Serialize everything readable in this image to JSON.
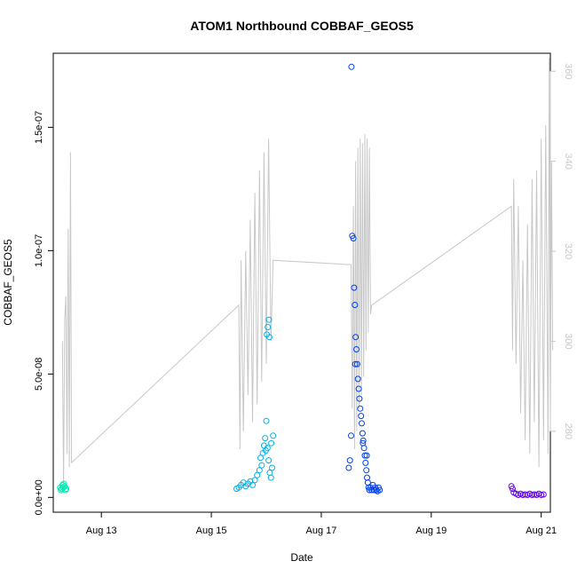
{
  "chart_data": {
    "type": "scatter",
    "title": "ATOM1 Northbound COBBAF_GEOS5",
    "xlabel": "Date",
    "ylabel": "COBBAF_GEOS5",
    "x_ticks": [
      "Aug 13",
      "Aug 15",
      "Aug 17",
      "Aug 19",
      "Aug 21"
    ],
    "y_ticks": [
      "0.0e+00",
      "5.0e-08",
      "1.0e-07",
      "1.5e-07"
    ],
    "y2_ticks": [
      "280",
      "300",
      "320",
      "340",
      "360"
    ],
    "xlim": [
      "2016-08-12T03:00",
      "2016-08-21T04:00"
    ],
    "ylim": [
      -6e-09,
      1.8e-07
    ],
    "y2lim": [
      262,
      364
    ],
    "grid": false,
    "legend": "none",
    "colors": {
      "line": "#c8c8c8",
      "right_axis": "#c8c8c8"
    },
    "scatter_series": [
      {
        "color": "#00e8b0",
        "points": [
          [
            "2016-08-12T06:00",
            4e-09
          ],
          [
            "2016-08-12T06:20",
            3e-09
          ],
          [
            "2016-08-12T06:40",
            3.5e-09
          ],
          [
            "2016-08-12T07:00",
            5e-09
          ],
          [
            "2016-08-12T07:20",
            4e-09
          ],
          [
            "2016-08-12T07:40",
            5.5e-09
          ],
          [
            "2016-08-12T08:00",
            4.5e-09
          ],
          [
            "2016-08-12T08:20",
            3e-09
          ],
          [
            "2016-08-12T08:40",
            3.5e-09
          ]
        ]
      },
      {
        "color": "#00b0f0",
        "points": [
          [
            "2016-08-15T11:00",
            3.5e-09
          ],
          [
            "2016-08-15T12:00",
            4e-09
          ],
          [
            "2016-08-15T13:00",
            5e-09
          ],
          [
            "2016-08-15T14:00",
            6e-09
          ],
          [
            "2016-08-15T15:00",
            4.5e-09
          ],
          [
            "2016-08-15T16:00",
            5.5e-09
          ],
          [
            "2016-08-15T17:00",
            6.5e-09
          ],
          [
            "2016-08-15T18:00",
            5e-09
          ],
          [
            "2016-08-15T19:00",
            7e-09
          ],
          [
            "2016-08-15T20:00",
            9e-09
          ],
          [
            "2016-08-15T21:00",
            1.1e-08
          ],
          [
            "2016-08-15T22:00",
            1.3e-08
          ],
          [
            "2016-08-15T22:30",
            1.8e-08
          ],
          [
            "2016-08-15T23:00",
            2.1e-08
          ],
          [
            "2016-08-15T23:30",
            2.4e-08
          ],
          [
            "2016-08-16T00:00",
            3.1e-08
          ],
          [
            "2016-08-16T00:30",
            2e-08
          ],
          [
            "2016-08-16T01:00",
            1.5e-08
          ],
          [
            "2016-08-16T01:30",
            1e-08
          ],
          [
            "2016-08-16T02:00",
            8e-09
          ],
          [
            "2016-08-16T02:30",
            1.2e-08
          ],
          [
            "2016-08-16T03:00",
            2.5e-08
          ],
          [
            "2016-08-15T21:30",
            1.6e-08
          ],
          [
            "2016-08-16T00:15",
            6.6e-08
          ],
          [
            "2016-08-16T00:40",
            6.9e-08
          ],
          [
            "2016-08-16T01:10",
            7.2e-08
          ],
          [
            "2016-08-16T01:20",
            6.5e-08
          ],
          [
            "2016-08-16T02:10",
            2.2e-08
          ],
          [
            "2016-08-15T23:45",
            1.9e-08
          ]
        ]
      },
      {
        "color": "#0040f0",
        "points": [
          [
            "2016-08-17T12:00",
            1.2e-08
          ],
          [
            "2016-08-17T12:30",
            1.5e-08
          ],
          [
            "2016-08-17T13:00",
            2.5e-08
          ],
          [
            "2016-08-17T13:10",
            1.745e-07
          ],
          [
            "2016-08-17T13:30",
            1.06e-07
          ],
          [
            "2016-08-17T14:00",
            1.05e-07
          ],
          [
            "2016-08-17T14:20",
            8.5e-08
          ],
          [
            "2016-08-17T14:40",
            7.8e-08
          ],
          [
            "2016-08-17T15:00",
            6.5e-08
          ],
          [
            "2016-08-17T15:20",
            6e-08
          ],
          [
            "2016-08-17T15:40",
            5.4e-08
          ],
          [
            "2016-08-17T16:00",
            4.8e-08
          ],
          [
            "2016-08-17T16:20",
            4.4e-08
          ],
          [
            "2016-08-17T16:40",
            4e-08
          ],
          [
            "2016-08-17T17:00",
            3.6e-08
          ],
          [
            "2016-08-17T17:20",
            3.3e-08
          ],
          [
            "2016-08-17T17:40",
            3e-08
          ],
          [
            "2016-08-17T18:00",
            2.6e-08
          ],
          [
            "2016-08-17T18:20",
            2.3e-08
          ],
          [
            "2016-08-17T18:40",
            2e-08
          ],
          [
            "2016-08-17T19:00",
            1.7e-08
          ],
          [
            "2016-08-17T19:20",
            1.4e-08
          ],
          [
            "2016-08-17T19:40",
            1.1e-08
          ],
          [
            "2016-08-17T20:00",
            8e-09
          ],
          [
            "2016-08-17T20:20",
            6e-09
          ],
          [
            "2016-08-17T20:40",
            4e-09
          ],
          [
            "2016-08-17T21:00",
            3e-09
          ],
          [
            "2016-08-17T21:30",
            4e-09
          ],
          [
            "2016-08-17T22:00",
            3e-09
          ],
          [
            "2016-08-17T22:30",
            5e-09
          ],
          [
            "2016-08-17T23:00",
            3e-09
          ],
          [
            "2016-08-17T23:30",
            4e-09
          ],
          [
            "2016-08-18T00:00",
            3e-09
          ],
          [
            "2016-08-18T00:30",
            2.5e-09
          ],
          [
            "2016-08-18T01:00",
            4e-09
          ],
          [
            "2016-08-18T01:30",
            3e-09
          ],
          [
            "2016-08-17T14:50",
            5.4e-08
          ],
          [
            "2016-08-17T18:10",
            2.2e-08
          ],
          [
            "2016-08-17T19:50",
            1.7e-08
          ]
        ]
      },
      {
        "color": "#6000e8",
        "points": [
          [
            "2016-08-20T11:00",
            4.5e-09
          ],
          [
            "2016-08-20T11:30",
            3.5e-09
          ],
          [
            "2016-08-20T12:00",
            2e-09
          ],
          [
            "2016-08-20T13:00",
            1.5e-09
          ],
          [
            "2016-08-20T14:00",
            1e-09
          ],
          [
            "2016-08-20T15:00",
            1.5e-09
          ],
          [
            "2016-08-20T16:00",
            1e-09
          ],
          [
            "2016-08-20T17:00",
            1.2e-09
          ],
          [
            "2016-08-20T18:00",
            1e-09
          ],
          [
            "2016-08-20T19:00",
            1.5e-09
          ],
          [
            "2016-08-20T20:00",
            1e-09
          ],
          [
            "2016-08-20T21:00",
            1.2e-09
          ],
          [
            "2016-08-20T22:00",
            1e-09
          ],
          [
            "2016-08-20T23:00",
            1.5e-09
          ],
          [
            "2016-08-21T00:00",
            1e-09
          ],
          [
            "2016-08-21T01:00",
            1.2e-09
          ]
        ]
      }
    ],
    "line_series": {
      "axis": "right",
      "points": [
        [
          "2016-08-12T07:00",
          300
        ],
        [
          "2016-08-12T07:30",
          268
        ],
        [
          "2016-08-12T08:00",
          305
        ],
        [
          "2016-08-12T08:30",
          310
        ],
        [
          "2016-08-12T09:00",
          275
        ],
        [
          "2016-08-12T09:30",
          325
        ],
        [
          "2016-08-12T10:00",
          272
        ],
        [
          "2016-08-12T10:30",
          342
        ],
        [
          "2016-08-12T11:00",
          273
        ],
        [
          "2016-08-15T12:00",
          308
        ],
        [
          "2016-08-15T12:30",
          276
        ],
        [
          "2016-08-15T13:00",
          318
        ],
        [
          "2016-08-15T14:00",
          280
        ],
        [
          "2016-08-15T15:00",
          320
        ],
        [
          "2016-08-15T16:00",
          288
        ],
        [
          "2016-08-15T17:00",
          327
        ],
        [
          "2016-08-15T18:00",
          282
        ],
        [
          "2016-08-15T19:00",
          333
        ],
        [
          "2016-08-15T20:00",
          286
        ],
        [
          "2016-08-15T21:00",
          338
        ],
        [
          "2016-08-15T22:00",
          291
        ],
        [
          "2016-08-15T23:00",
          342
        ],
        [
          "2016-08-16T00:00",
          295
        ],
        [
          "2016-08-16T01:00",
          345
        ],
        [
          "2016-08-16T02:00",
          300
        ],
        [
          "2016-08-16T03:00",
          318
        ],
        [
          "2016-08-17T13:00",
          317
        ],
        [
          "2016-08-17T13:30",
          285
        ],
        [
          "2016-08-17T14:00",
          330
        ],
        [
          "2016-08-17T14:30",
          276
        ],
        [
          "2016-08-17T15:00",
          340
        ],
        [
          "2016-08-17T15:30",
          280
        ],
        [
          "2016-08-17T16:00",
          343
        ],
        [
          "2016-08-17T16:30",
          285
        ],
        [
          "2016-08-17T17:00",
          345
        ],
        [
          "2016-08-17T17:30",
          288
        ],
        [
          "2016-08-17T18:00",
          344
        ],
        [
          "2016-08-17T18:30",
          292
        ],
        [
          "2016-08-17T19:00",
          346
        ],
        [
          "2016-08-17T19:30",
          298
        ],
        [
          "2016-08-17T20:00",
          345
        ],
        [
          "2016-08-17T20:30",
          302
        ],
        [
          "2016-08-17T21:00",
          343
        ],
        [
          "2016-08-17T21:30",
          306
        ],
        [
          "2016-08-17T22:00",
          308
        ],
        [
          "2016-08-20T11:00",
          330
        ],
        [
          "2016-08-20T11:30",
          298
        ],
        [
          "2016-08-20T12:00",
          336
        ],
        [
          "2016-08-20T13:00",
          295
        ],
        [
          "2016-08-20T14:00",
          330
        ],
        [
          "2016-08-20T15:00",
          284
        ],
        [
          "2016-08-20T16:00",
          318
        ],
        [
          "2016-08-20T17:00",
          278
        ],
        [
          "2016-08-20T18:00",
          326
        ],
        [
          "2016-08-20T19:00",
          275
        ],
        [
          "2016-08-20T20:00",
          336
        ],
        [
          "2016-08-20T21:00",
          282
        ],
        [
          "2016-08-20T22:00",
          338
        ],
        [
          "2016-08-20T23:00",
          272
        ],
        [
          "2016-08-21T00:00",
          345
        ],
        [
          "2016-08-21T01:00",
          278
        ],
        [
          "2016-08-21T02:00",
          348
        ],
        [
          "2016-08-21T03:00",
          275
        ],
        [
          "2016-08-21T03:30",
          363
        ],
        [
          "2016-08-21T04:00",
          282
        ],
        [
          "2016-08-21T04:30",
          340
        ],
        [
          "2016-08-21T05:00",
          298
        ]
      ]
    }
  }
}
